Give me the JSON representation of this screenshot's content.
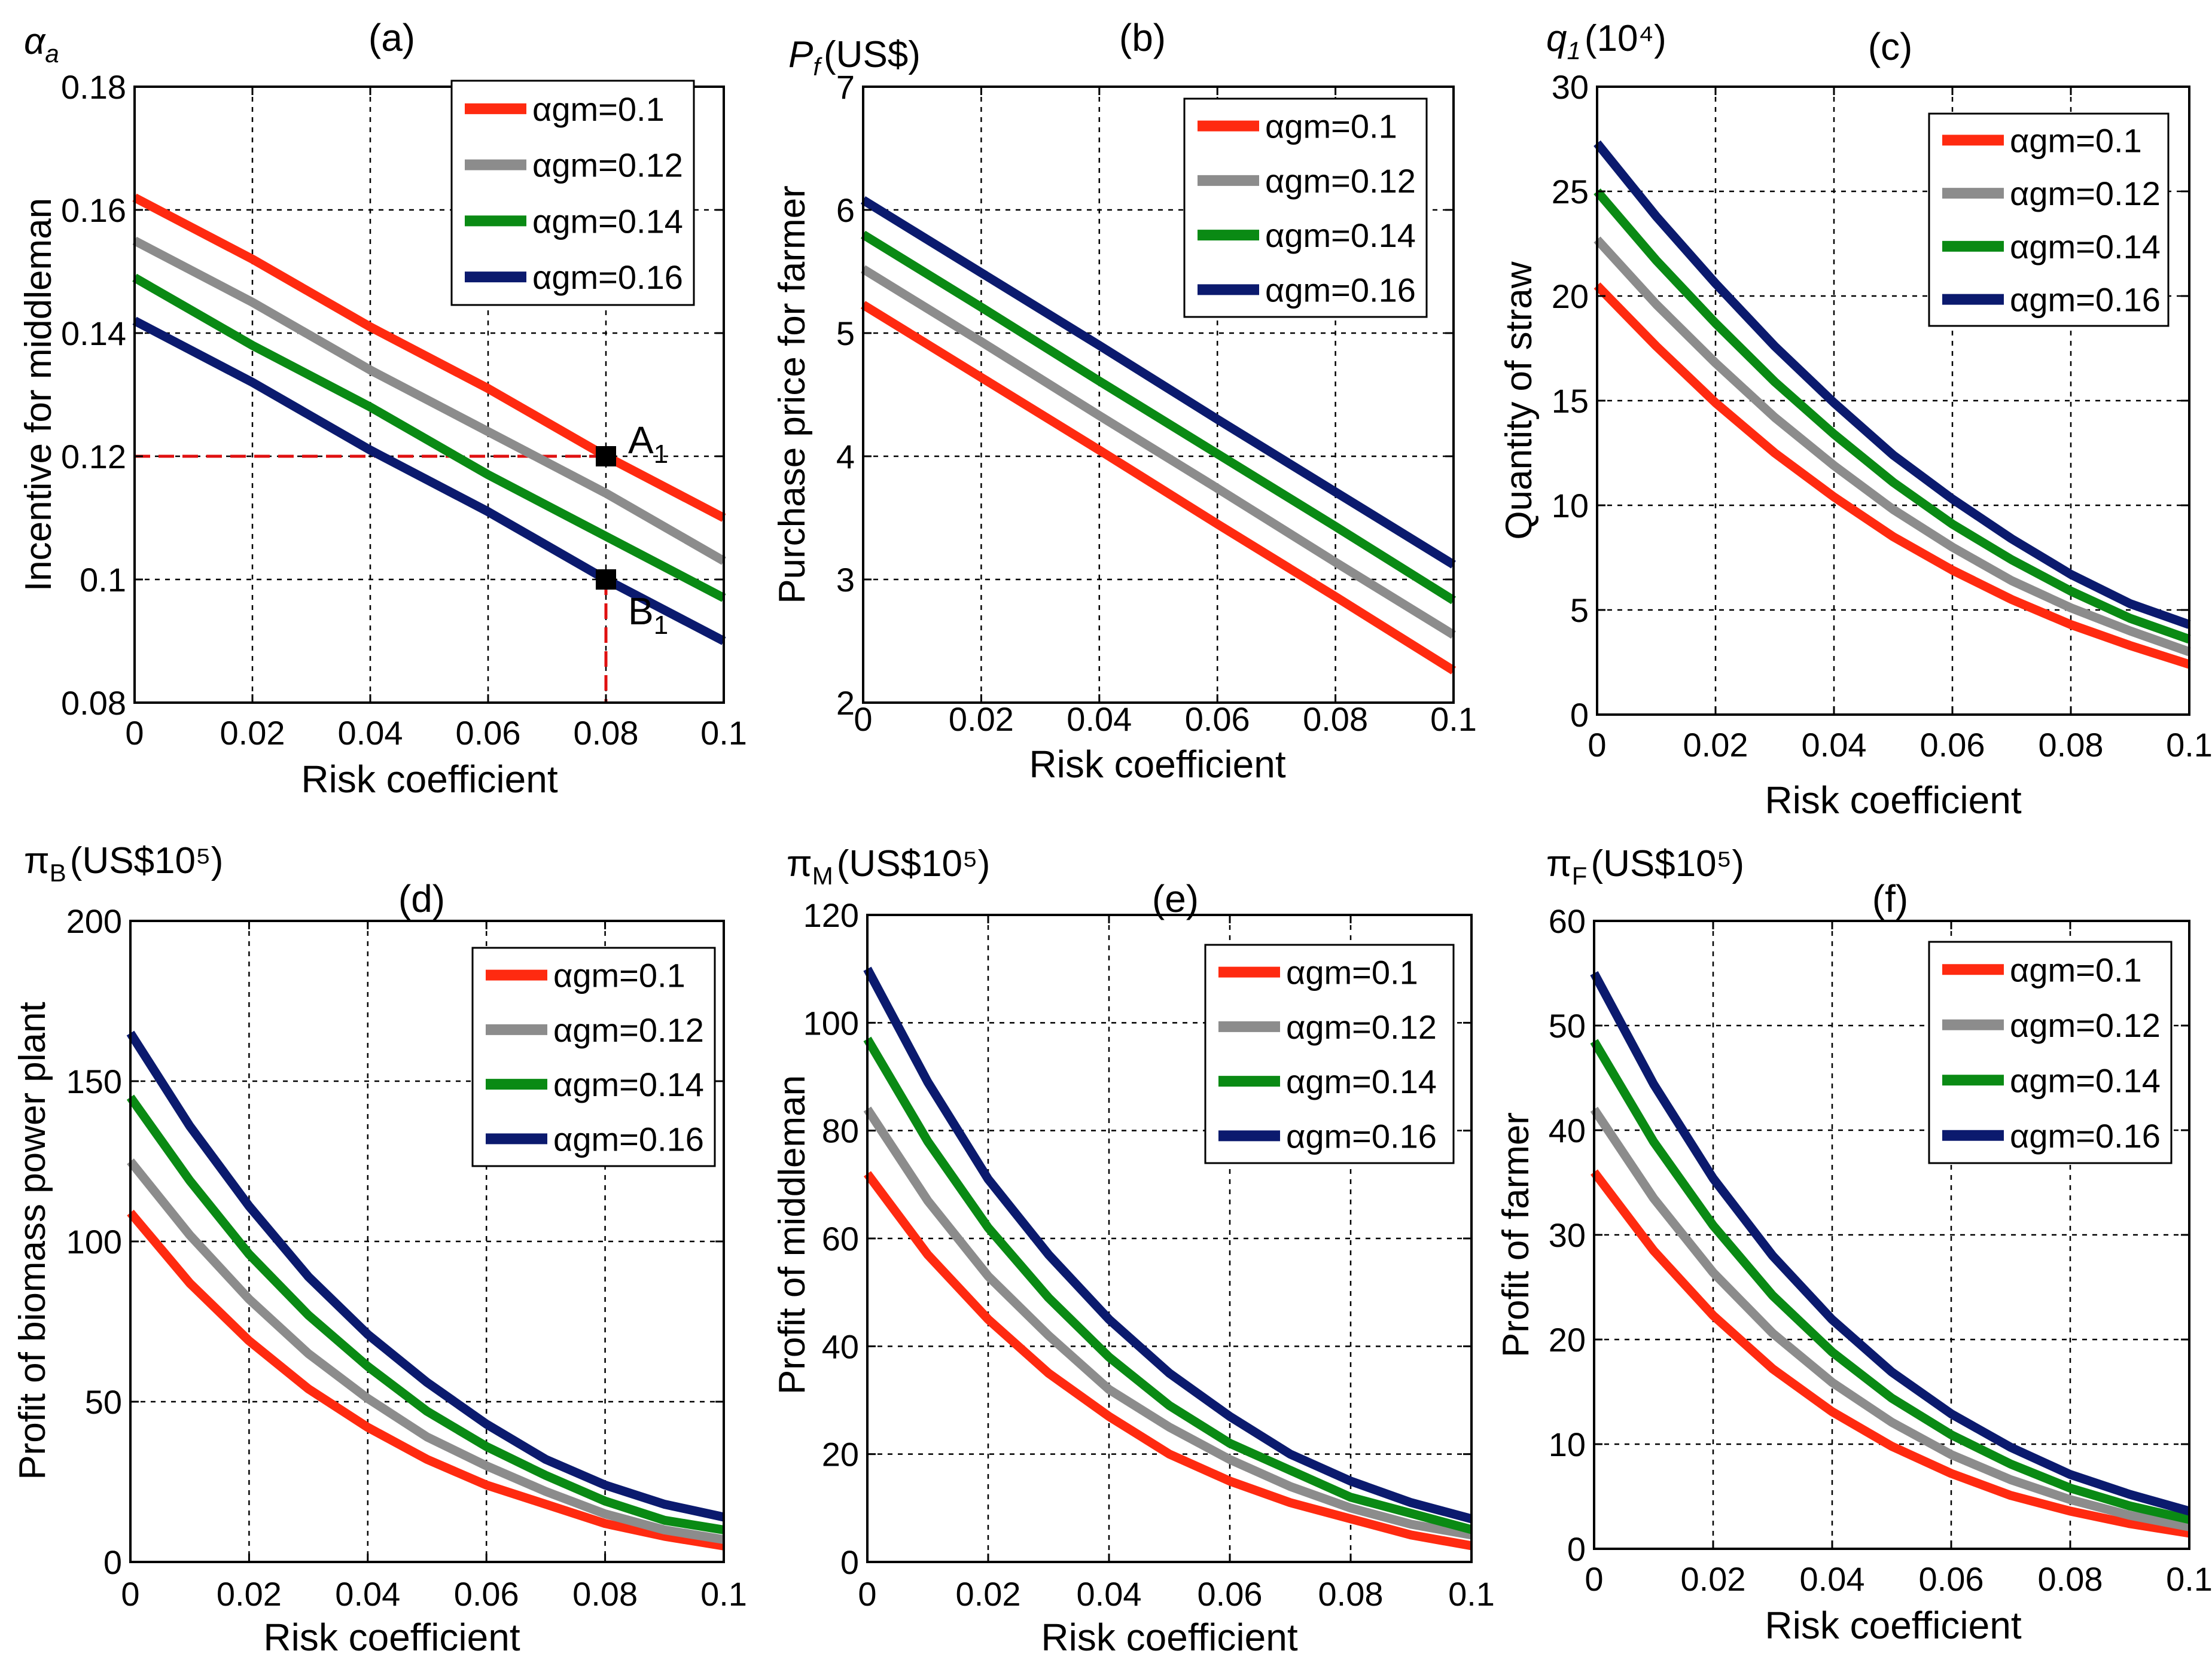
{
  "figure": {
    "xlabel": "Risk coefficient",
    "series_colors": [
      "#ff2a10",
      "#8c8c8c",
      "#0a8a14",
      "#0b1a6e"
    ],
    "legend_labels": [
      "αgm=0.1",
      "αgm=0.12",
      "αgm=0.14",
      "αgm=0.16"
    ]
  },
  "chart_data": [
    {
      "type": "line",
      "panel": "(a)",
      "title": "(a)",
      "unit_label": {
        "symbol": "α",
        "sub": "a",
        "text": ""
      },
      "xlabel": "Risk coefficient",
      "ylabel": "Incentive for middleman",
      "xlim": [
        0,
        0.1
      ],
      "ylim": [
        0.08,
        0.18
      ],
      "xticks": [
        0,
        0.02,
        0.04,
        0.06,
        0.08,
        0.1
      ],
      "xtick_labels": [
        "0",
        "0.02",
        "0.04",
        "0.06",
        "0.08",
        "0.1"
      ],
      "yticks": [
        0.08,
        0.1,
        0.12,
        0.14,
        0.16,
        0.18
      ],
      "ytick_labels": [
        "0.08",
        "0.1",
        "0.12",
        "0.14",
        "0.16",
        "0.18"
      ],
      "grid": true,
      "legend": "top-right",
      "x": [
        0,
        0.02,
        0.04,
        0.06,
        0.08,
        0.1
      ],
      "series": [
        {
          "name": "αgm=0.1",
          "values": [
            0.162,
            0.152,
            0.141,
            0.131,
            0.12,
            0.11
          ]
        },
        {
          "name": "αgm=0.12",
          "values": [
            0.155,
            0.145,
            0.134,
            0.124,
            0.114,
            0.103
          ]
        },
        {
          "name": "αgm=0.14",
          "values": [
            0.149,
            0.138,
            0.128,
            0.117,
            0.107,
            0.097
          ]
        },
        {
          "name": "αgm=0.16",
          "values": [
            0.142,
            0.132,
            0.121,
            0.111,
            0.1,
            0.09
          ]
        }
      ],
      "annotations": [
        {
          "label": "A",
          "sub": "1",
          "x": 0.08,
          "y": 0.12
        },
        {
          "label": "B",
          "sub": "1",
          "x": 0.08,
          "y": 0.1
        }
      ],
      "reference_lines": {
        "y": 0.12,
        "x": 0.08
      }
    },
    {
      "type": "line",
      "panel": "(b)",
      "title": "(b)",
      "unit_label": {
        "symbol": "P",
        "sub": "f",
        "text": "(US$)"
      },
      "xlabel": "Risk coefficient",
      "ylabel": "Purchase price for farmer",
      "xlim": [
        0,
        0.1
      ],
      "ylim": [
        2,
        7
      ],
      "xticks": [
        0,
        0.02,
        0.04,
        0.06,
        0.08,
        0.1
      ],
      "xtick_labels": [
        "0",
        "0.02",
        "0.04",
        "0.06",
        "0.08",
        "0.1"
      ],
      "yticks": [
        2,
        3,
        4,
        5,
        6,
        7
      ],
      "ytick_labels": [
        "2",
        "3",
        "4",
        "5",
        "6",
        "7"
      ],
      "grid": true,
      "legend": "top-right",
      "x": [
        0,
        0.02,
        0.04,
        0.06,
        0.08,
        0.1
      ],
      "series": [
        {
          "name": "αgm=0.1",
          "values": [
            5.23,
            4.64,
            4.05,
            3.45,
            2.86,
            2.26
          ]
        },
        {
          "name": "αgm=0.12",
          "values": [
            5.52,
            4.93,
            4.33,
            3.74,
            3.14,
            2.55
          ]
        },
        {
          "name": "αgm=0.14",
          "values": [
            5.8,
            5.21,
            4.61,
            4.02,
            3.43,
            2.83
          ]
        },
        {
          "name": "αgm=0.16",
          "values": [
            6.08,
            5.49,
            4.9,
            4.3,
            3.71,
            3.12
          ]
        }
      ]
    },
    {
      "type": "line",
      "panel": "(c)",
      "title": "(c)",
      "unit_label": {
        "symbol": "q",
        "sub": "1",
        "text": "(10⁴)"
      },
      "xlabel": "Risk coefficient",
      "ylabel": "Quantity of straw",
      "xlim": [
        0,
        0.1
      ],
      "ylim": [
        0,
        30
      ],
      "xticks": [
        0,
        0.02,
        0.04,
        0.06,
        0.08,
        0.1
      ],
      "xtick_labels": [
        "0",
        "0.02",
        "0.04",
        "0.06",
        "0.08",
        "0.1"
      ],
      "yticks": [
        0,
        5,
        10,
        15,
        20,
        25,
        30
      ],
      "ytick_labels": [
        "0",
        "5",
        "10",
        "15",
        "20",
        "25",
        "30"
      ],
      "grid": true,
      "legend": "top-right",
      "x": [
        0,
        0.01,
        0.02,
        0.03,
        0.04,
        0.05,
        0.06,
        0.07,
        0.08,
        0.09,
        0.1
      ],
      "series": [
        {
          "name": "αgm=0.1",
          "values": [
            20.5,
            17.6,
            14.9,
            12.5,
            10.4,
            8.5,
            6.9,
            5.5,
            4.3,
            3.3,
            2.4
          ]
        },
        {
          "name": "αgm=0.12",
          "values": [
            22.7,
            19.6,
            16.8,
            14.2,
            11.9,
            9.8,
            8.0,
            6.4,
            5.1,
            4.0,
            3.0
          ]
        },
        {
          "name": "αgm=0.14",
          "values": [
            25.0,
            21.7,
            18.7,
            15.9,
            13.4,
            11.1,
            9.1,
            7.4,
            5.9,
            4.6,
            3.6
          ]
        },
        {
          "name": "αgm=0.16",
          "values": [
            27.3,
            23.8,
            20.6,
            17.6,
            14.9,
            12.4,
            10.3,
            8.4,
            6.7,
            5.3,
            4.3
          ]
        }
      ]
    },
    {
      "type": "line",
      "panel": "(d)",
      "title": "(d)",
      "unit_label": {
        "symbol": "π",
        "sub": "B",
        "text": "(US$10⁵)"
      },
      "xlabel": "Risk coefficient",
      "ylabel": "Profit of biomass power plant",
      "xlim": [
        0,
        0.1
      ],
      "ylim": [
        0,
        200
      ],
      "xticks": [
        0,
        0.02,
        0.04,
        0.06,
        0.08,
        0.1
      ],
      "xtick_labels": [
        "0",
        "0.02",
        "0.04",
        "0.06",
        "0.08",
        "0.1"
      ],
      "yticks": [
        0,
        50,
        100,
        150,
        200
      ],
      "ytick_labels": [
        "0",
        "50",
        "100",
        "150",
        "200"
      ],
      "grid": true,
      "legend": "top-right",
      "x": [
        0,
        0.01,
        0.02,
        0.03,
        0.04,
        0.05,
        0.06,
        0.07,
        0.08,
        0.09,
        0.1
      ],
      "series": [
        {
          "name": "αgm=0.1",
          "values": [
            109,
            87,
            69,
            54,
            42,
            32,
            24,
            18,
            12,
            8,
            5
          ]
        },
        {
          "name": "αgm=0.12",
          "values": [
            125,
            102,
            82,
            65,
            51,
            39,
            30,
            22,
            15,
            10,
            7
          ]
        },
        {
          "name": "αgm=0.14",
          "values": [
            145,
            119,
            96,
            77,
            61,
            47,
            36,
            27,
            19,
            13,
            10
          ]
        },
        {
          "name": "αgm=0.16",
          "values": [
            165,
            136,
            111,
            89,
            71,
            56,
            43,
            32,
            24,
            18,
            14
          ]
        }
      ]
    },
    {
      "type": "line",
      "panel": "(e)",
      "title": "(e)",
      "unit_label": {
        "symbol": "π",
        "sub": "M",
        "text": "(US$10⁵)"
      },
      "xlabel": "Risk coefficient",
      "ylabel": "Profit of middleman",
      "xlim": [
        0,
        0.1
      ],
      "ylim": [
        0,
        120
      ],
      "xticks": [
        0,
        0.02,
        0.04,
        0.06,
        0.08,
        0.1
      ],
      "xtick_labels": [
        "0",
        "0.02",
        "0.04",
        "0.06",
        "0.08",
        "0.1"
      ],
      "yticks": [
        0,
        20,
        40,
        60,
        80,
        100,
        120
      ],
      "ytick_labels": [
        "0",
        "20",
        "40",
        "60",
        "80",
        "100",
        "120"
      ],
      "grid": true,
      "legend": "top-right",
      "x": [
        0,
        0.01,
        0.02,
        0.03,
        0.04,
        0.05,
        0.06,
        0.07,
        0.08,
        0.09,
        0.1
      ],
      "series": [
        {
          "name": "αgm=0.1",
          "values": [
            72,
            57,
            45,
            35,
            27,
            20,
            15,
            11,
            8,
            5,
            3
          ]
        },
        {
          "name": "αgm=0.12",
          "values": [
            84,
            67,
            53,
            42,
            32,
            25,
            19,
            14,
            10,
            7,
            5
          ]
        },
        {
          "name": "αgm=0.14",
          "values": [
            97,
            78,
            62,
            49,
            38,
            29,
            22,
            17,
            12,
            9,
            6
          ]
        },
        {
          "name": "αgm=0.16",
          "values": [
            110,
            89,
            71,
            57,
            45,
            35,
            27,
            20,
            15,
            11,
            8
          ]
        }
      ]
    },
    {
      "type": "line",
      "panel": "(f)",
      "title": "(f)",
      "unit_label": {
        "symbol": "π",
        "sub": "F",
        "text": "(US$10⁵)"
      },
      "xlabel": "Risk coefficient",
      "ylabel": "Profit of farmer",
      "xlim": [
        0,
        0.1
      ],
      "ylim": [
        0,
        60
      ],
      "xticks": [
        0,
        0.02,
        0.04,
        0.06,
        0.08,
        0.1
      ],
      "xtick_labels": [
        "0",
        "0.02",
        "0.04",
        "0.06",
        "0.08",
        "0.1"
      ],
      "yticks": [
        0,
        10,
        20,
        30,
        40,
        50,
        60
      ],
      "ytick_labels": [
        "0",
        "10",
        "20",
        "30",
        "40",
        "50",
        "60"
      ],
      "grid": true,
      "legend": "top-right",
      "x": [
        0,
        0.01,
        0.02,
        0.03,
        0.04,
        0.05,
        0.06,
        0.07,
        0.08,
        0.09,
        0.1
      ],
      "series": [
        {
          "name": "αgm=0.1",
          "values": [
            36,
            28.5,
            22.3,
            17.2,
            13.1,
            9.8,
            7.2,
            5.1,
            3.6,
            2.4,
            1.5
          ]
        },
        {
          "name": "αgm=0.12",
          "values": [
            42,
            33.5,
            26.4,
            20.6,
            15.9,
            12.1,
            9.0,
            6.6,
            4.7,
            3.2,
            2.1
          ]
        },
        {
          "name": "αgm=0.14",
          "values": [
            48.5,
            38.9,
            30.9,
            24.2,
            18.8,
            14.4,
            10.9,
            8.1,
            5.8,
            4.1,
            2.8
          ]
        },
        {
          "name": "αgm=0.16",
          "values": [
            55,
            44.4,
            35.4,
            28.0,
            21.9,
            16.9,
            12.9,
            9.7,
            7.1,
            5.2,
            3.6
          ]
        }
      ]
    }
  ]
}
